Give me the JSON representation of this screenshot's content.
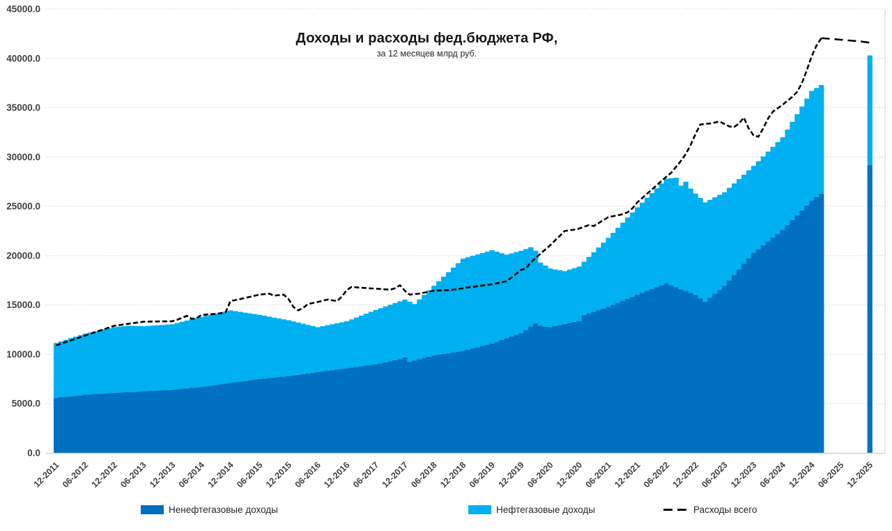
{
  "title": "Доходы и расходы фед.бюджета РФ,",
  "subtitle": "за 12 месяцев млрд руб.",
  "colors": {
    "bar_dark": "#0070c0",
    "bar_light": "#00b0f0",
    "line": "#000000",
    "gridline": "#c9c9c9",
    "axis_line": "#d0d0d0",
    "plot_border": "#d9d9d9",
    "axis_text": "#404040"
  },
  "legend": [
    {
      "label": "Ненефтегазовые доходы",
      "color": "#0070c0",
      "type": "swatch"
    },
    {
      "label": "Нефтегазовые доходы",
      "color": "#00b0f0",
      "type": "swatch"
    },
    {
      "label": "Расходы всего",
      "color": "#000000",
      "type": "dash"
    }
  ],
  "axes": {
    "y_ticks": [
      "0.0",
      "5000.0",
      "10000.0",
      "15000.0",
      "20000.0",
      "25000.0",
      "30000.0",
      "35000.0",
      "40000.0",
      "45000.0"
    ],
    "y_max": 45000,
    "y_step": 5000,
    "x_tick_every_months": 6,
    "x_tick_labels": [
      "12-2011",
      "06-2012",
      "12-2012",
      "06-2013",
      "12-2013",
      "06-2014",
      "12-2014",
      "06-2015",
      "12-2015",
      "06-2016",
      "12-2016",
      "06-2017",
      "12-2017",
      "06-2018",
      "12-2018",
      "06-2019",
      "12-2019",
      "06-2020",
      "12-2020",
      "06-2021",
      "12-2021",
      "06-2022",
      "12-2022",
      "06-2023",
      "12-2023",
      "06-2024",
      "12-2024",
      "06-2025",
      "12-2025"
    ]
  },
  "chart_data": {
    "type": "bar",
    "stacked": true,
    "x_start": "12-2011",
    "x_frequency": "monthly",
    "ylim": [
      0,
      45000
    ],
    "grid": true,
    "legend_position": "bottom",
    "series": [
      {
        "name": "Ненефтегазовые доходы",
        "role": "bar",
        "color": "#0070c0",
        "values": [
          5600,
          5650,
          5700,
          5750,
          5800,
          5850,
          5900,
          5930,
          5970,
          6000,
          6030,
          6070,
          6100,
          6125,
          6150,
          6175,
          6200,
          6225,
          6250,
          6275,
          6300,
          6325,
          6350,
          6375,
          6400,
          6450,
          6500,
          6550,
          6600,
          6650,
          6700,
          6770,
          6830,
          6900,
          6970,
          7030,
          7100,
          7170,
          7230,
          7300,
          7370,
          7430,
          7500,
          7550,
          7600,
          7650,
          7700,
          7750,
          7800,
          7870,
          7930,
          8000,
          8070,
          8130,
          8200,
          8270,
          8330,
          8400,
          8470,
          8530,
          8600,
          8670,
          8730,
          8800,
          8870,
          8930,
          9000,
          9100,
          9200,
          9300,
          9400,
          9500,
          9700,
          9250,
          9380,
          9510,
          9640,
          9770,
          9900,
          9975,
          10050,
          10125,
          10200,
          10275,
          10350,
          10475,
          10600,
          10725,
          10850,
          10975,
          11100,
          11275,
          11450,
          11625,
          11800,
          11975,
          12150,
          12480,
          12820,
          13150,
          12900,
          12800,
          12750,
          12860,
          12970,
          13080,
          13190,
          13290,
          13400,
          14000,
          14160,
          14320,
          14480,
          14640,
          14800,
          15010,
          15220,
          15430,
          15640,
          15850,
          16050,
          16240,
          16430,
          16620,
          16810,
          17000,
          17200,
          17000,
          16810,
          16620,
          16430,
          16240,
          16050,
          15700,
          15350,
          15750,
          16150,
          16550,
          16950,
          17510,
          18070,
          18630,
          19180,
          19740,
          20300,
          20680,
          21070,
          21450,
          21830,
          22220,
          22600,
          23100,
          23600,
          24100,
          24600,
          25100,
          25600,
          25950,
          26300
        ]
      },
      {
        "name": "Нефтегазовые доходы",
        "role": "bar",
        "color": "#00b0f0",
        "values": [
          5550,
          5660,
          5770,
          5880,
          5990,
          6090,
          6200,
          6280,
          6350,
          6430,
          6510,
          6570,
          6650,
          6675,
          6700,
          6725,
          6680,
          6645,
          6600,
          6605,
          6620,
          6625,
          6630,
          6645,
          6650,
          6725,
          6800,
          6875,
          6950,
          7025,
          7100,
          7140,
          7190,
          7230,
          7260,
          7310,
          7350,
          7205,
          7070,
          6925,
          6780,
          6645,
          6500,
          6360,
          6220,
          6075,
          5930,
          5790,
          5650,
          5460,
          5290,
          5100,
          4910,
          4740,
          4550,
          4580,
          4620,
          4650,
          4680,
          4720,
          4750,
          4870,
          5000,
          5125,
          5245,
          5380,
          5500,
          5575,
          5650,
          5725,
          5800,
          5875,
          5850,
          6080,
          5720,
          6050,
          6385,
          6720,
          7050,
          7435,
          7820,
          8205,
          8590,
          8965,
          9350,
          9365,
          9380,
          9400,
          9420,
          9435,
          9450,
          9125,
          8800,
          8475,
          8430,
          8395,
          8350,
          8200,
          8040,
          7350,
          6400,
          6200,
          5950,
          5750,
          5550,
          5350,
          5400,
          5450,
          5500,
          5380,
          5710,
          6030,
          6350,
          6680,
          7000,
          7310,
          7610,
          7920,
          8230,
          8530,
          8850,
          9140,
          9440,
          9730,
          10020,
          10320,
          10600,
          10850,
          11090,
          10480,
          11070,
          10560,
          10250,
          10150,
          10050,
          9910,
          9770,
          9620,
          9480,
          9365,
          9250,
          9135,
          9030,
          8915,
          8800,
          8900,
          9000,
          9100,
          9200,
          9300,
          9400,
          9680,
          9970,
          10250,
          10530,
          10820,
          11100,
          11050,
          11000
        ]
      },
      {
        "name": "Расходы всего",
        "role": "line",
        "color": "#000000",
        "values": [
          10900,
          11070,
          11240,
          11400,
          11570,
          11730,
          11900,
          12070,
          12230,
          12400,
          12560,
          12730,
          12890,
          12960,
          13030,
          13100,
          13170,
          13230,
          13300,
          13310,
          13320,
          13330,
          13340,
          13340,
          13350,
          13500,
          13700,
          13900,
          13600,
          13650,
          14000,
          14030,
          14060,
          14100,
          14175,
          14250,
          15400,
          15500,
          15600,
          15710,
          15820,
          15940,
          16050,
          16100,
          16150,
          15950,
          16000,
          16050,
          15600,
          14800,
          14450,
          14700,
          15100,
          15200,
          15300,
          15430,
          15550,
          15475,
          15400,
          15850,
          16500,
          16830,
          16790,
          16750,
          16720,
          16680,
          16650,
          16620,
          16580,
          16550,
          16700,
          17000,
          16450,
          16050,
          16100,
          16150,
          16250,
          16350,
          16450,
          16470,
          16500,
          16510,
          16550,
          16620,
          16700,
          16770,
          16830,
          16900,
          16970,
          17030,
          17100,
          17200,
          17300,
          17400,
          17780,
          18160,
          18550,
          18700,
          19300,
          19750,
          20200,
          20620,
          21050,
          21530,
          22000,
          22500,
          22570,
          22640,
          22750,
          22930,
          23100,
          23000,
          23300,
          23600,
          23900,
          24000,
          24100,
          24200,
          24400,
          24800,
          25400,
          25830,
          26270,
          26700,
          27130,
          27570,
          28000,
          28400,
          29000,
          29600,
          30300,
          31200,
          32300,
          33300,
          33350,
          33400,
          33500,
          33600,
          33350,
          33100,
          33050,
          33400,
          34000,
          32900,
          32200,
          32050,
          32900,
          33900,
          34600,
          34950,
          35300,
          35700,
          36100,
          36600,
          37500,
          38800,
          40200,
          41300,
          42050
        ]
      }
    ],
    "plan_bar": {
      "month_index": 168,
      "label": "12-2025",
      "nonoil": 29200,
      "oil": 11100,
      "total": 40300
    },
    "plan_expenses_line": [
      {
        "month_index": 158,
        "value": 42050
      },
      {
        "month_index": 160,
        "value": 41980
      },
      {
        "month_index": 163,
        "value": 41850
      },
      {
        "month_index": 166,
        "value": 41720
      },
      {
        "month_index": 168,
        "value": 41600
      }
    ]
  }
}
